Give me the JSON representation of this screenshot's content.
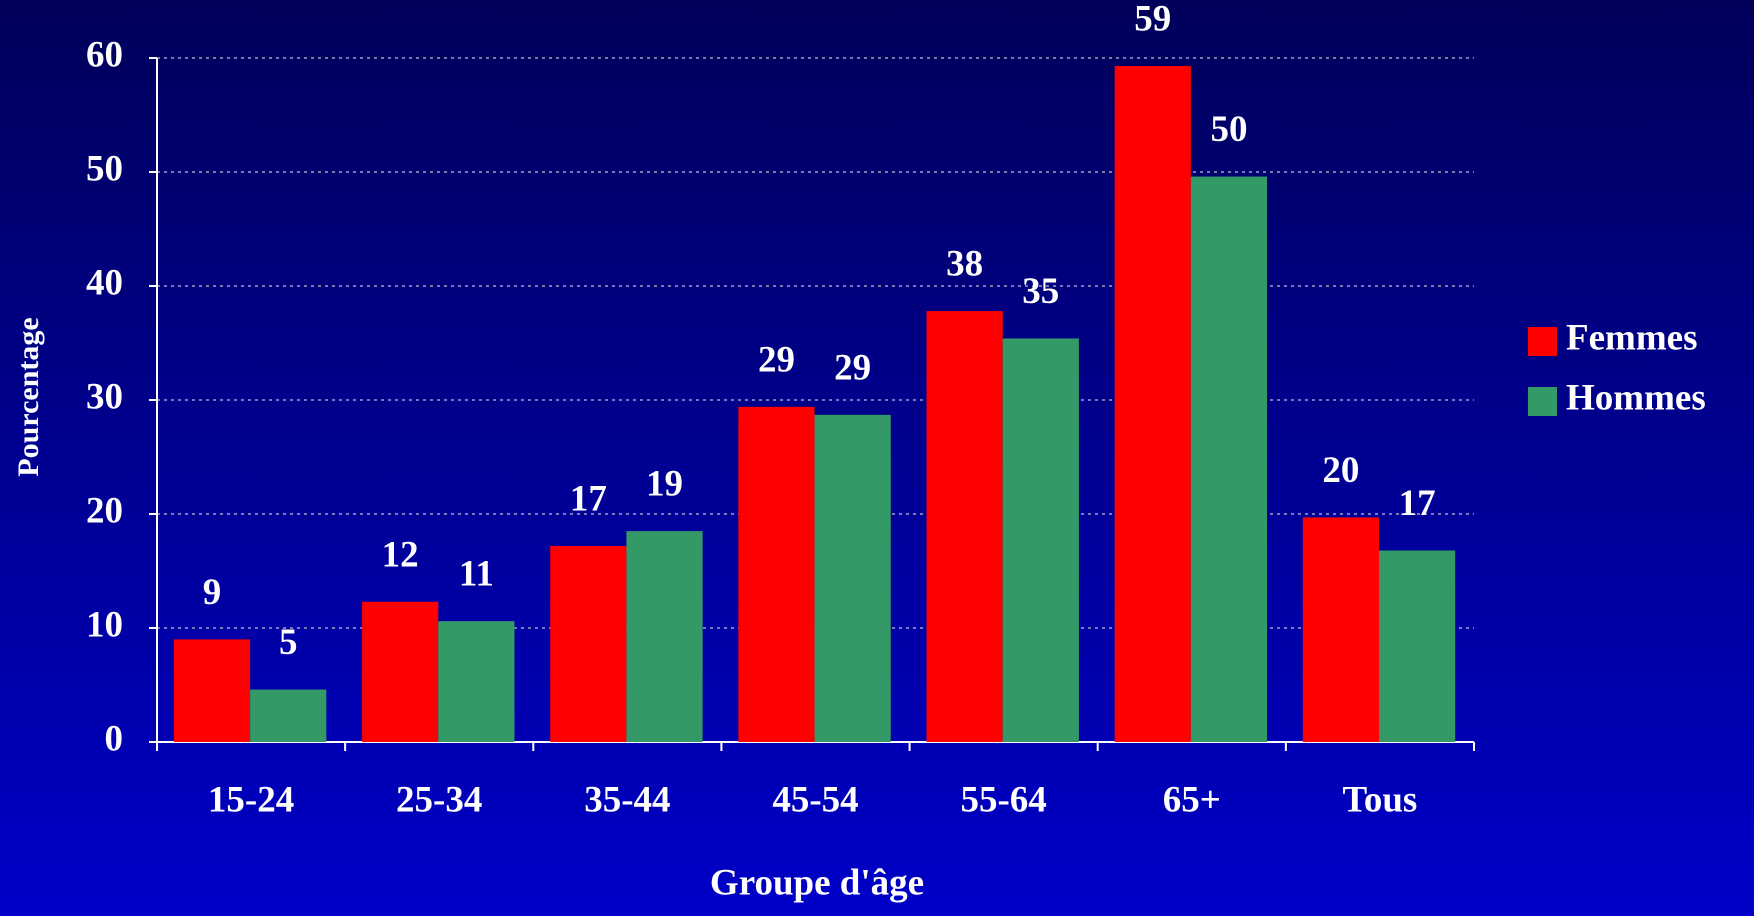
{
  "chart_data": {
    "type": "bar",
    "x_label": "Groupe d'âge",
    "y_label": "Pourcentage",
    "categories": [
      "15-24",
      "25-34",
      "35-44",
      "45-54",
      "55-64",
      "65+",
      "Tous"
    ],
    "series": [
      {
        "name": "Femmes",
        "color": "#ff0000",
        "values": [
          9.0,
          12.3,
          17.2,
          29.4,
          37.8,
          59.3,
          19.7
        ],
        "value_labels": [
          "9",
          "12",
          "17",
          "29",
          "38",
          "59",
          "20"
        ]
      },
      {
        "name": "Hommes",
        "color": "#339966",
        "values": [
          4.6,
          10.6,
          18.5,
          28.7,
          35.4,
          49.6,
          16.8
        ],
        "value_labels": [
          "5",
          "11",
          "19",
          "29",
          "35",
          "50",
          "17"
        ]
      }
    ],
    "ylim": [
      0,
      60
    ],
    "yticks": [
      0,
      10,
      20,
      30,
      40,
      50,
      60
    ],
    "grid": true,
    "legend": "right"
  }
}
